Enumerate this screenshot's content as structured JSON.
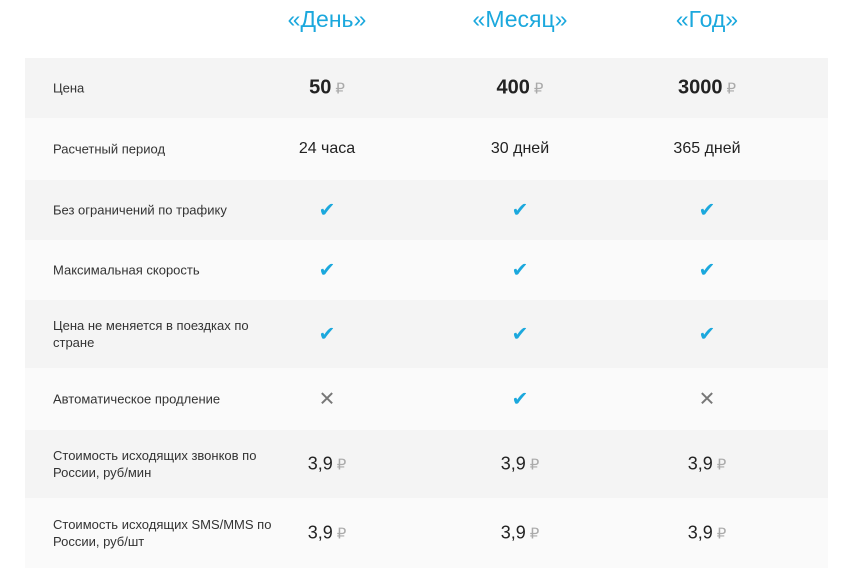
{
  "plans": [
    "«День»",
    "«Месяц»",
    "«Год»"
  ],
  "accent_color": "#1ba8dd",
  "currency": "₽",
  "rows": [
    {
      "label": "Цена",
      "type": "price",
      "values": [
        "50",
        "400",
        "3000"
      ]
    },
    {
      "label": "Расчетный период",
      "type": "text",
      "values": [
        "24 часа",
        "30 дней",
        "365 дней"
      ]
    },
    {
      "label": "Без ограничений по трафику",
      "type": "bool",
      "values": [
        true,
        true,
        true
      ]
    },
    {
      "label": "Максимальная скорость",
      "type": "bool",
      "values": [
        true,
        true,
        true
      ]
    },
    {
      "label": "Цена не меняется в поездках по стране",
      "type": "bool",
      "values": [
        true,
        true,
        true
      ]
    },
    {
      "label": "Автоматическое продление",
      "type": "bool",
      "values": [
        false,
        true,
        false
      ]
    },
    {
      "label": "Стоимость исходящих звонков по России, руб/мин",
      "type": "cost",
      "values": [
        "3,9",
        "3,9",
        "3,9"
      ]
    },
    {
      "label": "Стоимость исходящих SMS/MMS по России, руб/шт",
      "type": "cost",
      "values": [
        "3,9",
        "3,9",
        "3,9"
      ]
    }
  ]
}
